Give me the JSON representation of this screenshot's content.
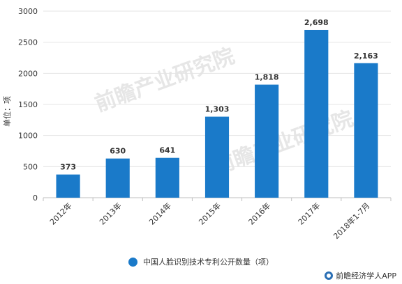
{
  "chart_data": {
    "type": "bar",
    "categories": [
      "2012年",
      "2013年",
      "2014年",
      "2015年",
      "2016年",
      "2017年",
      "2018年1-7月"
    ],
    "series": [
      {
        "name": "中国人脸识别技术专利公开数量（项）",
        "values": [
          373,
          630,
          641,
          1303,
          1818,
          2698,
          2163
        ],
        "labels": [
          "373",
          "630",
          "641",
          "1,303",
          "1,818",
          "2,698",
          "2,163"
        ]
      }
    ],
    "yticks": [
      0,
      500,
      1000,
      1500,
      2000,
      2500,
      3000
    ],
    "ylim": [
      0,
      3000
    ],
    "ylabel": "单位：项",
    "xlabel": "",
    "grid": true,
    "legend_position": "bottom",
    "bar_color": "#1a7ac9"
  },
  "legend": {
    "label": "中国人脸识别技术专利公开数量（项）"
  },
  "source": {
    "label": "前瞻经济学人APP"
  },
  "watermark": {
    "text": "前瞻产业研究院"
  }
}
